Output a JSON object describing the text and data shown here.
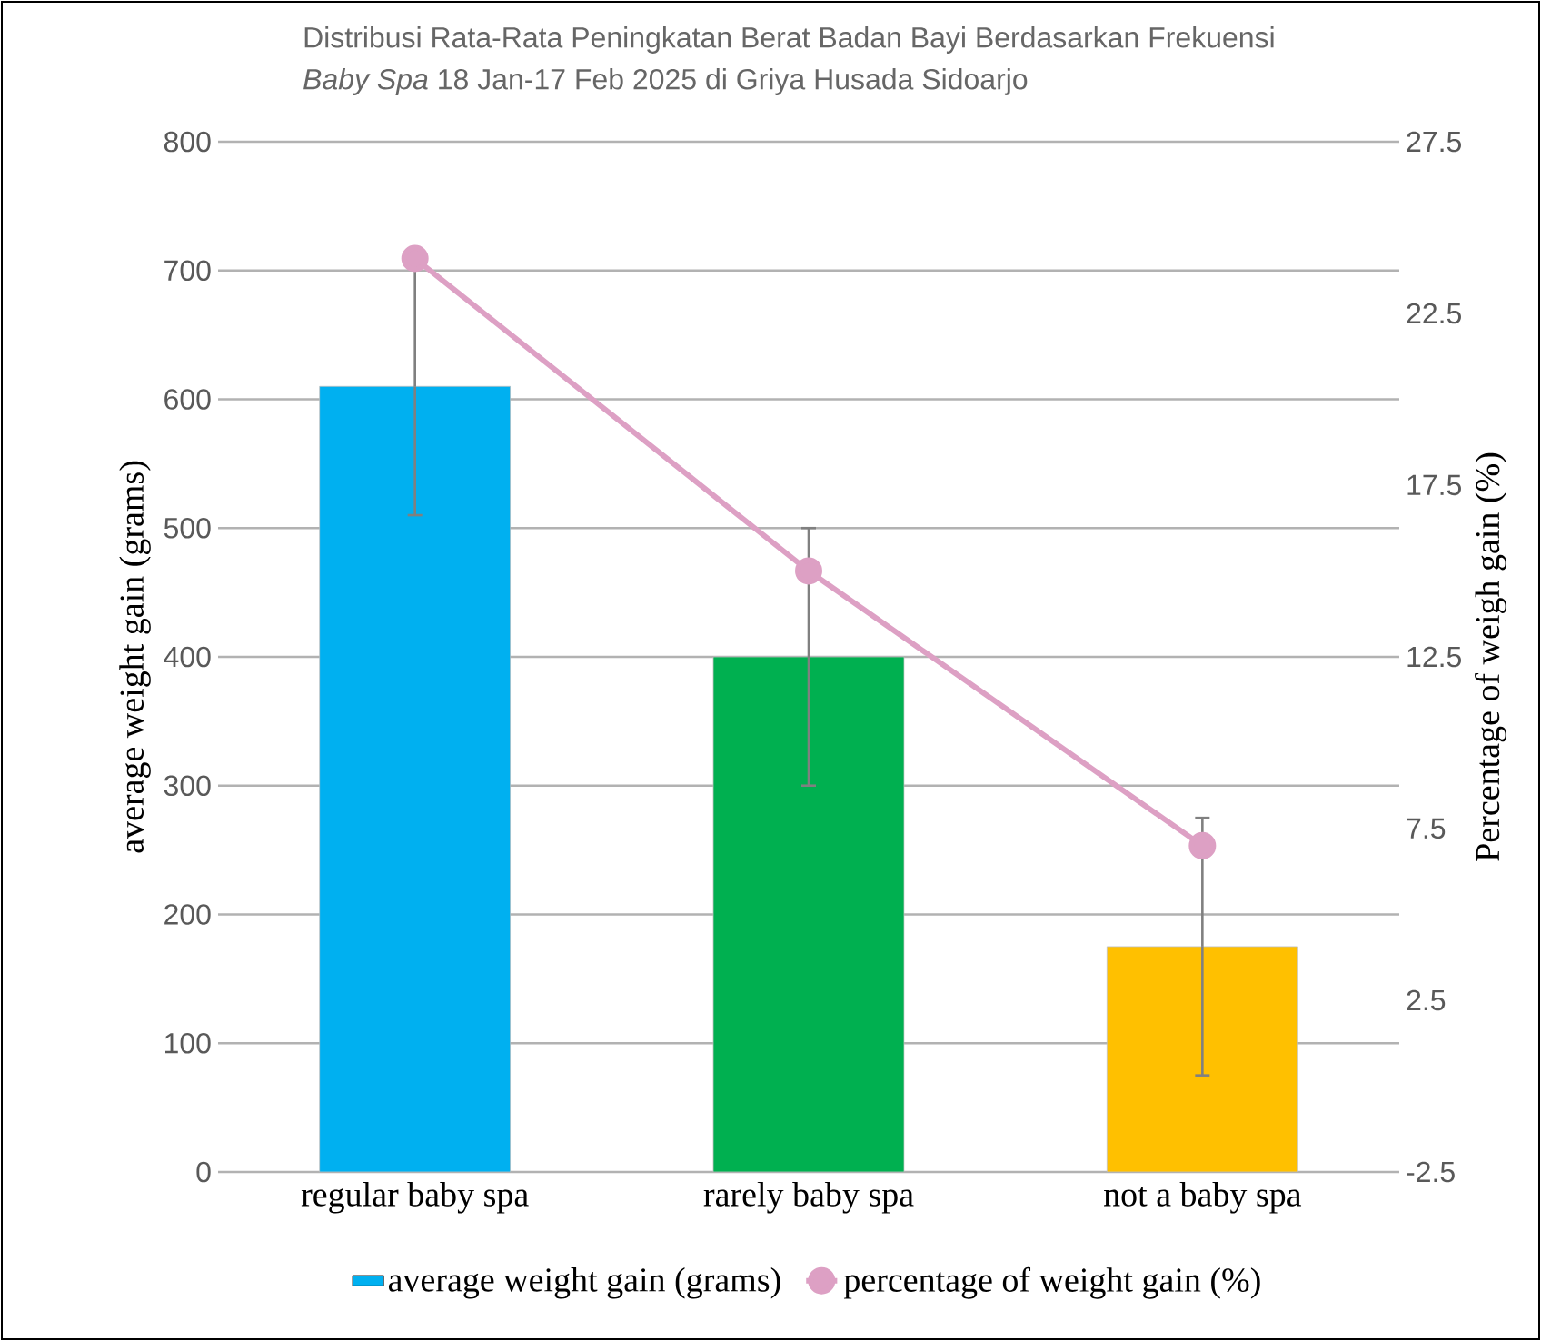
{
  "chart_data": {
    "type": "bar",
    "title": "Distribusi Rata-Rata Peningkatan Berat Badan Bayi Berdasarkan Frekuensi",
    "subtitle": "*Baby Spa*  18 Jan-17 Feb 2025 di Griya Husada Sidoarjo",
    "ylabel": "average weight gain (grams)",
    "y2label": "Percentage of weigh gain (%)",
    "categories": [
      "regular baby spa",
      "rarely baby spa",
      "not a baby spa"
    ],
    "series": [
      {
        "name": "average weight gain (grams)",
        "color": "#00b0f0",
        "colors": [
          "#00b0f0",
          "#00b050",
          "#ffc000"
        ],
        "values": [
          610,
          400,
          175
        ],
        "errors": [
          100,
          100,
          100
        ]
      },
      {
        "name": "percentage of weight gain (%)",
        "type": "line",
        "axis": "y2",
        "color": "#dda0c4",
        "values": [
          24.1,
          15,
          7
        ]
      }
    ],
    "ylim": [
      0,
      800
    ],
    "yticks": [
      0,
      100,
      200,
      300,
      400,
      500,
      600,
      700,
      800
    ],
    "y2lim": [
      -2.5,
      27.5
    ],
    "y2ticks": [
      -2.5,
      2.5,
      7.5,
      12.5,
      17.5,
      22.5,
      27.5
    ],
    "grid": "y",
    "legend": "bottom",
    "marker": "circle",
    "line_style": "solid"
  }
}
